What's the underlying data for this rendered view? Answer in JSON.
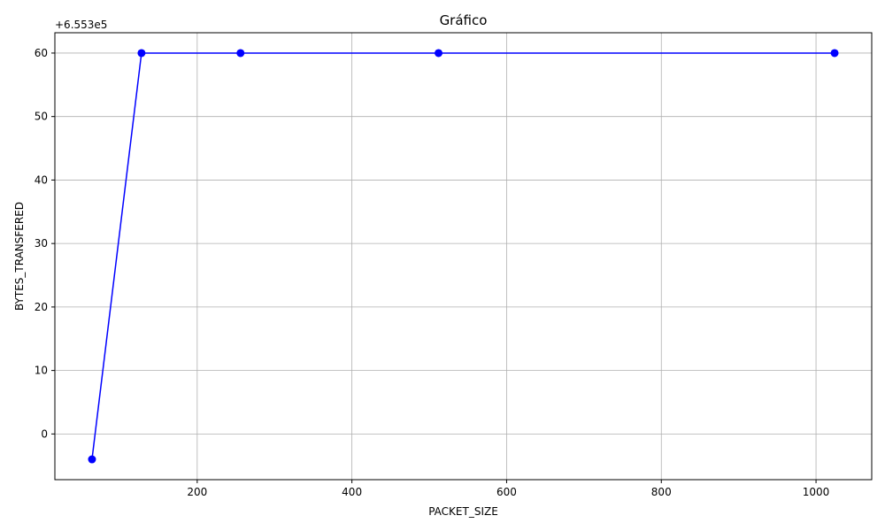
{
  "chart_data": {
    "type": "line",
    "title": "Gráfico",
    "xlabel": "PACKET_SIZE",
    "ylabel": "BYTES_TRANSFERED",
    "offset_label": "+6.553e5",
    "x": [
      64,
      128,
      256,
      512,
      1024
    ],
    "series": [
      {
        "values": [
          655296,
          655360,
          655360,
          655360,
          655360
        ],
        "color": "#0000ff"
      }
    ],
    "xlim": [
      16,
      1072
    ],
    "ylim": [
      655292.8,
      655363.2
    ],
    "offset": 655300,
    "xticks": [
      200,
      400,
      600,
      800,
      1000
    ],
    "yticks": [
      0,
      10,
      20,
      30,
      40,
      50,
      60
    ],
    "grid": true,
    "legend": "none"
  }
}
